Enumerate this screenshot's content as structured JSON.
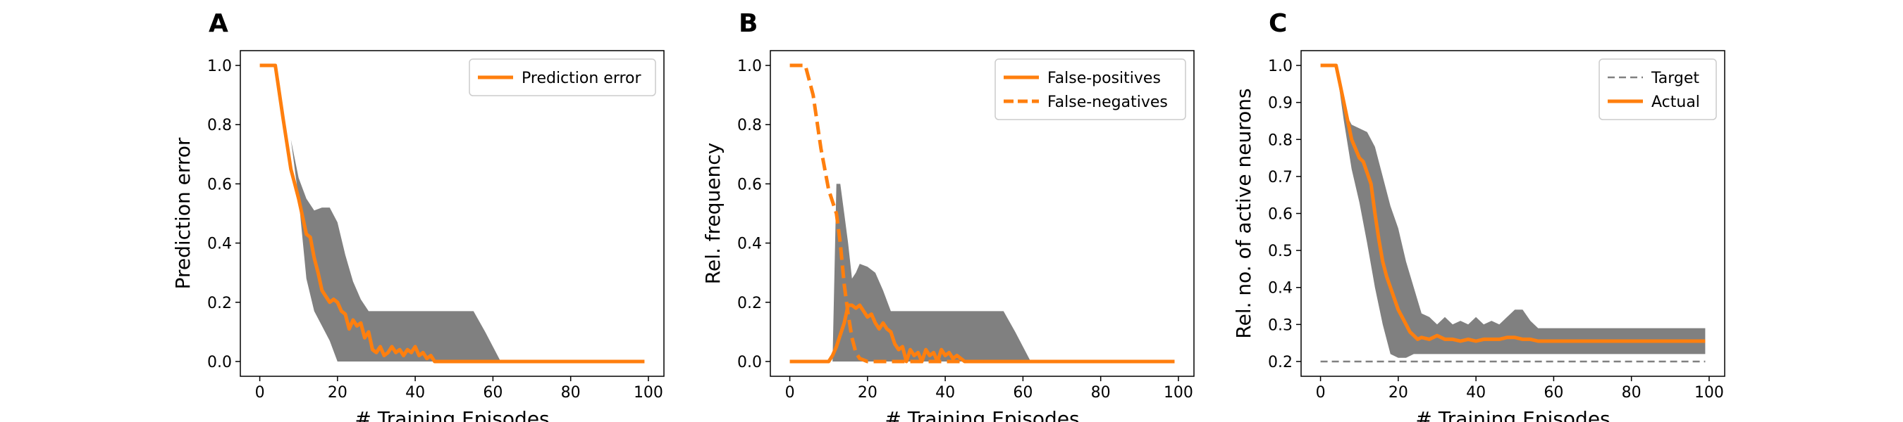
{
  "colors": {
    "orange": "#ff7f0e",
    "band": "#808080",
    "target": "#808080"
  },
  "chart_data": [
    {
      "type": "line",
      "panel_label": "A",
      "xlabel": "# Training Episodes",
      "ylabel": "Prediction error",
      "xlim": [
        -5,
        104
      ],
      "ylim": [
        -0.05,
        1.05
      ],
      "xticks": [
        0,
        20,
        40,
        60,
        80,
        100
      ],
      "yticks": [
        0.0,
        0.2,
        0.4,
        0.6,
        0.8,
        1.0
      ],
      "ytick_labels": [
        "0.0",
        "0.2",
        "0.4",
        "0.6",
        "0.8",
        "1.0"
      ],
      "legend": "top-right",
      "band": {
        "x": [
          0,
          4,
          8,
          10,
          12,
          14,
          16,
          18,
          20,
          22,
          24,
          26,
          28,
          30,
          35,
          40,
          45,
          50,
          55,
          58,
          62,
          100
        ],
        "upper": [
          1,
          1,
          0.75,
          0.62,
          0.55,
          0.51,
          0.52,
          0.52,
          0.47,
          0.36,
          0.27,
          0.21,
          0.17,
          0.17,
          0.17,
          0.17,
          0.17,
          0.17,
          0.17,
          0.1,
          0.0,
          0.0
        ],
        "lower": [
          1,
          1,
          0.75,
          0.55,
          0.28,
          0.17,
          0.12,
          0.07,
          0.0,
          0.0,
          0.0,
          0.0,
          0.0,
          0.0,
          0.0,
          0.0,
          0.0,
          0.0,
          0.0,
          0.0,
          0.0,
          0.0
        ]
      },
      "series": [
        {
          "name": "Prediction error",
          "style": "solid",
          "x": [
            0,
            4,
            6,
            8,
            9,
            10,
            11,
            12,
            13,
            14,
            15,
            16,
            17,
            18,
            19,
            20,
            21,
            22,
            23,
            24,
            25,
            26,
            27,
            28,
            29,
            30,
            31,
            32,
            33,
            34,
            35,
            36,
            37,
            38,
            39,
            40,
            41,
            42,
            43,
            44,
            45,
            46,
            50,
            55,
            60,
            65,
            70,
            80,
            90,
            99
          ],
          "y": [
            1.0,
            1.0,
            0.82,
            0.65,
            0.6,
            0.55,
            0.49,
            0.43,
            0.42,
            0.35,
            0.3,
            0.24,
            0.22,
            0.2,
            0.21,
            0.2,
            0.17,
            0.16,
            0.11,
            0.14,
            0.12,
            0.13,
            0.08,
            0.1,
            0.04,
            0.03,
            0.05,
            0.02,
            0.03,
            0.05,
            0.03,
            0.04,
            0.02,
            0.04,
            0.03,
            0.05,
            0.02,
            0.03,
            0.01,
            0.02,
            0.0,
            0.0,
            0.0,
            0.0,
            0.0,
            0.0,
            0.0,
            0.0,
            0.0,
            0.0
          ]
        }
      ]
    },
    {
      "type": "line",
      "panel_label": "B",
      "xlabel": "# Training Episodes",
      "ylabel": "Rel. frequency",
      "xlim": [
        -5,
        104
      ],
      "ylim": [
        -0.05,
        1.05
      ],
      "xticks": [
        0,
        20,
        40,
        60,
        80,
        100
      ],
      "yticks": [
        0.0,
        0.2,
        0.4,
        0.6,
        0.8,
        1.0
      ],
      "ytick_labels": [
        "0.0",
        "0.2",
        "0.4",
        "0.6",
        "0.8",
        "1.0"
      ],
      "legend": "top-right",
      "band": {
        "x": [
          0,
          9,
          11,
          12,
          13,
          14,
          15,
          16,
          17,
          18,
          20,
          22,
          24,
          26,
          28,
          30,
          35,
          40,
          45,
          50,
          55,
          58,
          62,
          100
        ],
        "upper": [
          0,
          0,
          0.0,
          0.6,
          0.6,
          0.5,
          0.4,
          0.28,
          0.3,
          0.33,
          0.32,
          0.3,
          0.24,
          0.17,
          0.17,
          0.17,
          0.17,
          0.17,
          0.17,
          0.17,
          0.17,
          0.1,
          0.0,
          0.0
        ],
        "lower": [
          0,
          0,
          0.0,
          0.0,
          0.0,
          0.0,
          0.0,
          0.0,
          0.0,
          0.0,
          0.0,
          0.0,
          0.0,
          0.0,
          0.0,
          0.0,
          0.0,
          0.0,
          0.0,
          0.0,
          0.0,
          0.0,
          0.0,
          0.0
        ]
      },
      "series": [
        {
          "name": "False-positives",
          "style": "solid",
          "x": [
            0,
            10,
            11,
            12,
            13,
            14,
            15,
            16,
            17,
            18,
            19,
            20,
            21,
            22,
            23,
            24,
            25,
            26,
            27,
            28,
            29,
            30,
            31,
            32,
            33,
            34,
            35,
            36,
            37,
            38,
            39,
            40,
            41,
            42,
            43,
            44,
            45,
            50,
            60,
            70,
            80,
            90,
            99
          ],
          "y": [
            0.0,
            0.0,
            0.02,
            0.05,
            0.09,
            0.13,
            0.19,
            0.19,
            0.18,
            0.19,
            0.17,
            0.15,
            0.16,
            0.13,
            0.11,
            0.13,
            0.11,
            0.1,
            0.06,
            0.04,
            0.05,
            0.0,
            0.04,
            0.02,
            0.03,
            0.0,
            0.04,
            0.02,
            0.03,
            0.0,
            0.04,
            0.02,
            0.03,
            0.01,
            0.02,
            0.01,
            0.0,
            0.0,
            0.0,
            0.0,
            0.0,
            0.0,
            0.0
          ]
        },
        {
          "name": "False-negatives",
          "style": "dashed",
          "x": [
            0,
            4,
            6,
            8,
            10,
            12,
            13,
            14,
            15,
            16,
            17,
            18,
            20,
            22,
            99
          ],
          "y": [
            1.0,
            1.0,
            0.9,
            0.72,
            0.58,
            0.5,
            0.4,
            0.26,
            0.16,
            0.08,
            0.03,
            0.01,
            0.0,
            0.0,
            0.0
          ]
        }
      ]
    },
    {
      "type": "line",
      "panel_label": "C",
      "xlabel": "# Training Episodes",
      "ylabel": "Rel. no. of active neurons",
      "xlim": [
        -5,
        104
      ],
      "ylim": [
        0.16,
        1.04
      ],
      "xticks": [
        0,
        20,
        40,
        60,
        80,
        100
      ],
      "yticks": [
        0.2,
        0.3,
        0.4,
        0.5,
        0.6,
        0.7,
        0.8,
        0.9,
        1.0
      ],
      "ytick_labels": [
        "0.2",
        "0.3",
        "0.4",
        "0.5",
        "0.6",
        "0.7",
        "0.8",
        "0.9",
        "1.0"
      ],
      "legend": "top-right",
      "band": {
        "x": [
          0,
          4,
          6,
          8,
          10,
          12,
          14,
          16,
          18,
          20,
          22,
          24,
          26,
          28,
          30,
          32,
          34,
          36,
          38,
          40,
          42,
          44,
          46,
          48,
          50,
          52,
          54,
          56,
          58,
          60,
          70,
          80,
          90,
          99
        ],
        "upper": [
          1,
          1,
          0.88,
          0.84,
          0.83,
          0.82,
          0.78,
          0.7,
          0.62,
          0.56,
          0.47,
          0.4,
          0.33,
          0.32,
          0.3,
          0.32,
          0.3,
          0.31,
          0.3,
          0.32,
          0.3,
          0.31,
          0.3,
          0.32,
          0.34,
          0.34,
          0.31,
          0.29,
          0.29,
          0.29,
          0.29,
          0.29,
          0.29,
          0.29
        ],
        "lower": [
          1,
          1,
          0.85,
          0.72,
          0.63,
          0.52,
          0.4,
          0.3,
          0.22,
          0.21,
          0.21,
          0.22,
          0.22,
          0.22,
          0.22,
          0.22,
          0.22,
          0.22,
          0.22,
          0.22,
          0.22,
          0.22,
          0.22,
          0.22,
          0.22,
          0.22,
          0.22,
          0.22,
          0.22,
          0.22,
          0.22,
          0.22,
          0.22,
          0.22
        ]
      },
      "series": [
        {
          "name": "Target",
          "style": "dashed",
          "color_key": "target",
          "x": [
            0,
            99
          ],
          "y": [
            0.2,
            0.2
          ]
        },
        {
          "name": "Actual",
          "style": "solid",
          "color_key": "orange",
          "x": [
            0,
            4,
            6,
            8,
            10,
            11,
            12,
            13,
            14,
            15,
            16,
            17,
            18,
            19,
            20,
            21,
            22,
            23,
            24,
            25,
            26,
            28,
            30,
            32,
            34,
            36,
            38,
            40,
            42,
            44,
            46,
            48,
            50,
            52,
            54,
            56,
            58,
            60,
            70,
            80,
            90,
            99
          ],
          "y": [
            1.0,
            1.0,
            0.9,
            0.8,
            0.75,
            0.74,
            0.71,
            0.68,
            0.6,
            0.53,
            0.47,
            0.43,
            0.4,
            0.37,
            0.34,
            0.32,
            0.3,
            0.28,
            0.27,
            0.26,
            0.265,
            0.26,
            0.27,
            0.26,
            0.26,
            0.255,
            0.26,
            0.255,
            0.26,
            0.26,
            0.26,
            0.265,
            0.265,
            0.26,
            0.26,
            0.255,
            0.255,
            0.255,
            0.255,
            0.255,
            0.255,
            0.255
          ]
        }
      ]
    }
  ]
}
